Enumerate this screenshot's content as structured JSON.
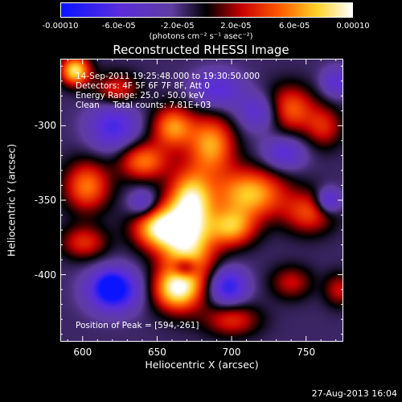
{
  "chart_data": {
    "type": "heatmap",
    "title": "Reconstructed RHESSI Image",
    "xlabel": "Heliocentric X (arcsec)",
    "ylabel": "Heliocentric Y (arcsec)",
    "xlim": [
      585,
      775
    ],
    "ylim": [
      -445,
      -255
    ],
    "x_ticks": [
      600,
      650,
      700,
      750
    ],
    "y_ticks": [
      -300,
      -350,
      -400
    ],
    "colorbar": {
      "range": [
        -0.0001,
        0.0001
      ],
      "tick_labels": [
        "-0.00010",
        "-6.0e-05",
        "-2.0e-05",
        "2.0e-05",
        "6.0e-05",
        "0.00010"
      ],
      "tick_values": [
        -0.0001,
        -6e-05,
        -2e-05,
        2e-05,
        6e-05,
        0.0001
      ],
      "units": "(photons cm⁻² s⁻¹ asec⁻²)"
    },
    "annotations": [
      "14-Sep-2011 19:25:48.000 to 19:30:50.000",
      "Detectors: 4F 5F 6F 7F 8F, Att 0",
      "Energy Range: 25.0 - 50.0 keV",
      "Clean     Total counts: 7.81E+03"
    ],
    "peak_label": "Position of Peak = [594,-261]",
    "blobs": [
      {
        "x": 670,
        "y": -380,
        "sx": 13,
        "sy": 22,
        "a": 1.0
      },
      {
        "x": 650,
        "y": -368,
        "sx": 12,
        "sy": 10,
        "a": 0.95
      },
      {
        "x": 672,
        "y": -348,
        "sx": 10,
        "sy": 14,
        "a": 0.75
      },
      {
        "x": 662,
        "y": -410,
        "sx": 11,
        "sy": 10,
        "a": 0.85
      },
      {
        "x": 700,
        "y": -368,
        "sx": 11,
        "sy": 9,
        "a": 0.75
      },
      {
        "x": 712,
        "y": -345,
        "sx": 17,
        "sy": 12,
        "a": 0.88
      },
      {
        "x": 686,
        "y": -312,
        "sx": 11,
        "sy": 14,
        "a": 0.8
      },
      {
        "x": 660,
        "y": -300,
        "sx": 10,
        "sy": 10,
        "a": 0.75
      },
      {
        "x": 640,
        "y": -323,
        "sx": 12,
        "sy": 9,
        "a": 0.7
      },
      {
        "x": 738,
        "y": -288,
        "sx": 12,
        "sy": 11,
        "a": 0.7
      },
      {
        "x": 762,
        "y": -300,
        "sx": 9,
        "sy": 10,
        "a": 0.45
      },
      {
        "x": 602,
        "y": -340,
        "sx": 11,
        "sy": 12,
        "a": 0.7
      },
      {
        "x": 594,
        "y": -262,
        "sx": 7,
        "sy": 7,
        "a": 1.0
      },
      {
        "x": 622,
        "y": -275,
        "sx": 11,
        "sy": 8,
        "a": 0.5
      },
      {
        "x": 600,
        "y": -378,
        "sx": 11,
        "sy": 8,
        "a": 0.5
      },
      {
        "x": 752,
        "y": -358,
        "sx": 12,
        "sy": 10,
        "a": 0.55
      },
      {
        "x": 700,
        "y": -430,
        "sx": 13,
        "sy": 8,
        "a": 0.5
      },
      {
        "x": 740,
        "y": -405,
        "sx": 10,
        "sy": 8,
        "a": 0.4
      },
      {
        "x": 772,
        "y": -410,
        "sx": 7,
        "sy": 8,
        "a": 0.4
      },
      {
        "x": 620,
        "y": -410,
        "sx": 12,
        "sy": 10,
        "a": -0.9
      },
      {
        "x": 618,
        "y": -408,
        "sx": 5,
        "sy": 5,
        "a": -0.5
      },
      {
        "x": 668,
        "y": -395,
        "sx": 6,
        "sy": 5,
        "a": -0.6
      },
      {
        "x": 697,
        "y": -408,
        "sx": 9,
        "sy": 9,
        "a": -0.7
      },
      {
        "x": 620,
        "y": -300,
        "sx": 12,
        "sy": 12,
        "a": -0.55
      },
      {
        "x": 720,
        "y": -290,
        "sx": 11,
        "sy": 9,
        "a": -0.5
      },
      {
        "x": 735,
        "y": -318,
        "sx": 10,
        "sy": 8,
        "a": -0.45
      },
      {
        "x": 765,
        "y": -350,
        "sx": 6,
        "sy": 6,
        "a": -0.6
      },
      {
        "x": 690,
        "y": -275,
        "sx": 12,
        "sy": 9,
        "a": -0.45
      },
      {
        "x": 640,
        "y": -352,
        "sx": 7,
        "sy": 7,
        "a": -0.45
      },
      {
        "x": 770,
        "y": -270,
        "sx": 7,
        "sy": 7,
        "a": -0.4
      }
    ],
    "base_level": -0.15
  },
  "date_stamp": "27-Aug-2013 16:04"
}
